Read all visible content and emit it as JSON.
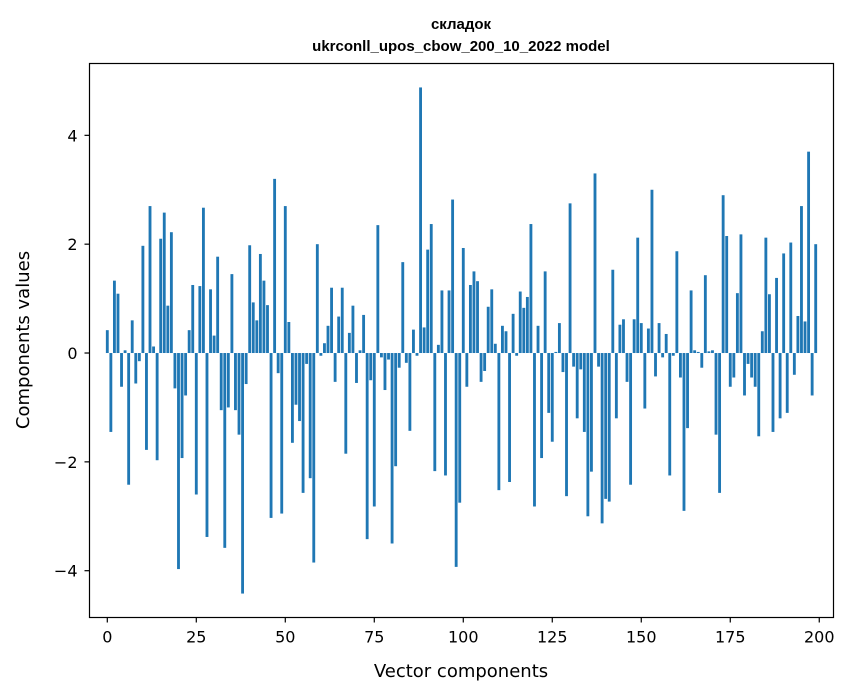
{
  "chart_data": {
    "type": "bar",
    "title": [
      "складок",
      "ukrconll_upos_cbow_200_10_2022 model"
    ],
    "xlabel": "Vector components",
    "ylabel": "Components values",
    "xlim": [
      -5,
      204
    ],
    "ylim": [
      -4.86,
      5.32
    ],
    "x_ticks": [
      0,
      25,
      50,
      75,
      100,
      125,
      150,
      175,
      200
    ],
    "y_ticks": [
      -4,
      -2,
      0,
      2,
      4
    ],
    "y_tick_labels": [
      "−4",
      "−2",
      "0",
      "2",
      "4"
    ],
    "bar_color": "#1f77b4",
    "grid": false,
    "legend": "none",
    "x": [
      0,
      1,
      2,
      3,
      4,
      5,
      6,
      7,
      8,
      9,
      10,
      11,
      12,
      13,
      14,
      15,
      16,
      17,
      18,
      19,
      20,
      21,
      22,
      23,
      24,
      25,
      26,
      27,
      28,
      29,
      30,
      31,
      32,
      33,
      34,
      35,
      36,
      37,
      38,
      39,
      40,
      41,
      42,
      43,
      44,
      45,
      46,
      47,
      48,
      49,
      50,
      51,
      52,
      53,
      54,
      55,
      56,
      57,
      58,
      59,
      60,
      61,
      62,
      63,
      64,
      65,
      66,
      67,
      68,
      69,
      70,
      71,
      72,
      73,
      74,
      75,
      76,
      77,
      78,
      79,
      80,
      81,
      82,
      83,
      84,
      85,
      86,
      87,
      88,
      89,
      90,
      91,
      92,
      93,
      94,
      95,
      96,
      97,
      98,
      99,
      100,
      101,
      102,
      103,
      104,
      105,
      106,
      107,
      108,
      109,
      110,
      111,
      112,
      113,
      114,
      115,
      116,
      117,
      118,
      119,
      120,
      121,
      122,
      123,
      124,
      125,
      126,
      127,
      128,
      129,
      130,
      131,
      132,
      133,
      134,
      135,
      136,
      137,
      138,
      139,
      140,
      141,
      142,
      143,
      144,
      145,
      146,
      147,
      148,
      149,
      150,
      151,
      152,
      153,
      154,
      155,
      156,
      157,
      158,
      159,
      160,
      161,
      162,
      163,
      164,
      165,
      166,
      167,
      168,
      169,
      170,
      171,
      172,
      173,
      174,
      175,
      176,
      177,
      178,
      179,
      180,
      181,
      182,
      183,
      184,
      185,
      186,
      187,
      188,
      189,
      190,
      191,
      192,
      193,
      194,
      195,
      196,
      197,
      198,
      199
    ],
    "values": [
      0.42,
      -1.45,
      1.33,
      1.09,
      -0.62,
      0.05,
      -2.42,
      0.6,
      -0.56,
      -0.15,
      1.97,
      -1.78,
      2.7,
      0.12,
      -1.97,
      2.1,
      2.58,
      0.87,
      2.22,
      -0.65,
      -3.97,
      -1.93,
      -0.78,
      0.42,
      1.25,
      -2.6,
      1.23,
      2.67,
      -3.38,
      1.17,
      0.32,
      1.77,
      -1.05,
      -3.58,
      -1.0,
      1.45,
      -1.05,
      -1.5,
      -4.42,
      -0.57,
      1.98,
      0.93,
      0.6,
      1.82,
      1.33,
      0.88,
      -3.03,
      3.2,
      -0.37,
      -2.95,
      2.7,
      0.57,
      -1.65,
      -0.95,
      -1.25,
      -2.57,
      -0.2,
      -2.3,
      -3.85,
      2.0,
      -0.05,
      0.18,
      0.5,
      1.2,
      -0.53,
      0.67,
      1.2,
      -1.85,
      0.37,
      0.87,
      -0.55,
      0.05,
      0.7,
      -3.42,
      -0.5,
      -2.82,
      2.35,
      -0.08,
      -0.68,
      -0.12,
      -3.5,
      -2.08,
      -0.27,
      1.67,
      -0.18,
      -1.43,
      0.43,
      -0.05,
      4.88,
      0.47,
      1.9,
      2.37,
      -2.17,
      0.15,
      1.15,
      -2.25,
      1.15,
      2.82,
      -3.93,
      -2.75,
      1.93,
      -0.62,
      1.25,
      1.5,
      1.32,
      -0.53,
      -0.33,
      0.85,
      1.17,
      0.17,
      -2.52,
      0.5,
      0.4,
      -2.37,
      0.72,
      -0.05,
      1.13,
      0.83,
      1.03,
      2.37,
      -2.82,
      0.5,
      -1.93,
      1.5,
      -1.1,
      -1.63,
      0.02,
      0.55,
      -0.35,
      -2.63,
      2.75,
      -0.25,
      -1.2,
      -0.3,
      -1.45,
      -3.0,
      -2.18,
      3.3,
      -0.25,
      -3.13,
      -2.68,
      -2.73,
      1.53,
      -1.2,
      0.52,
      0.62,
      -0.53,
      -2.42,
      0.62,
      2.12,
      0.55,
      -1.02,
      0.45,
      3.0,
      -0.43,
      0.55,
      -0.08,
      0.35,
      -2.25,
      -0.05,
      1.87,
      -0.45,
      -2.9,
      -1.38,
      1.15,
      0.05,
      0.02,
      -0.27,
      1.43,
      0.03,
      0.05,
      -1.5,
      -2.57,
      2.9,
      2.15,
      -0.62,
      -0.45,
      1.1,
      2.18,
      -0.78,
      -0.2,
      -0.45,
      -0.62,
      -1.53,
      0.4,
      2.12,
      1.08,
      -1.45,
      1.38,
      -1.2,
      1.83,
      -1.1,
      2.03,
      -0.4,
      0.68,
      2.7,
      0.58,
      3.7,
      -0.78,
      2.0
    ]
  }
}
